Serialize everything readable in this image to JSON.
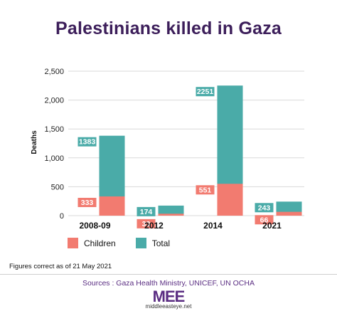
{
  "title": "Palestinians killed in Gaza",
  "colors": {
    "children": "#f27b70",
    "total": "#4aaba8",
    "title": "#3c1e5a",
    "sources": "#5a2d82"
  },
  "chart_data": {
    "type": "bar",
    "categories": [
      "2008-09",
      "2012",
      "2014",
      "2021"
    ],
    "series": [
      {
        "name": "Children",
        "values": [
          333,
          33,
          551,
          66
        ],
        "color": "#f27b70"
      },
      {
        "name": "Total",
        "values": [
          1383,
          174,
          2251,
          243
        ],
        "color": "#4aaba8"
      }
    ],
    "data_labels": {
      "children": [
        "333",
        "33",
        "551",
        "66"
      ],
      "total": [
        "1383",
        "174",
        "2251",
        "243"
      ]
    },
    "ylabel": "Deaths",
    "ylim": [
      0,
      2500
    ],
    "yticks": [
      0,
      500,
      1000,
      1500,
      2000,
      2500
    ],
    "ytick_labels": [
      "0",
      "500",
      "1,000",
      "1,500",
      "2,000",
      "2,500"
    ],
    "grid": true,
    "legend_position": "bottom-left",
    "stacking": "overlay"
  },
  "legend": {
    "children_label": "Children",
    "total_label": "Total"
  },
  "note": "Figures correct as of 21 May 2021",
  "sources": "Sources : Gaza Health Ministry, UNICEF, UN OCHA",
  "logo": {
    "mark": "MEE",
    "url": "middleeasteye.net"
  }
}
